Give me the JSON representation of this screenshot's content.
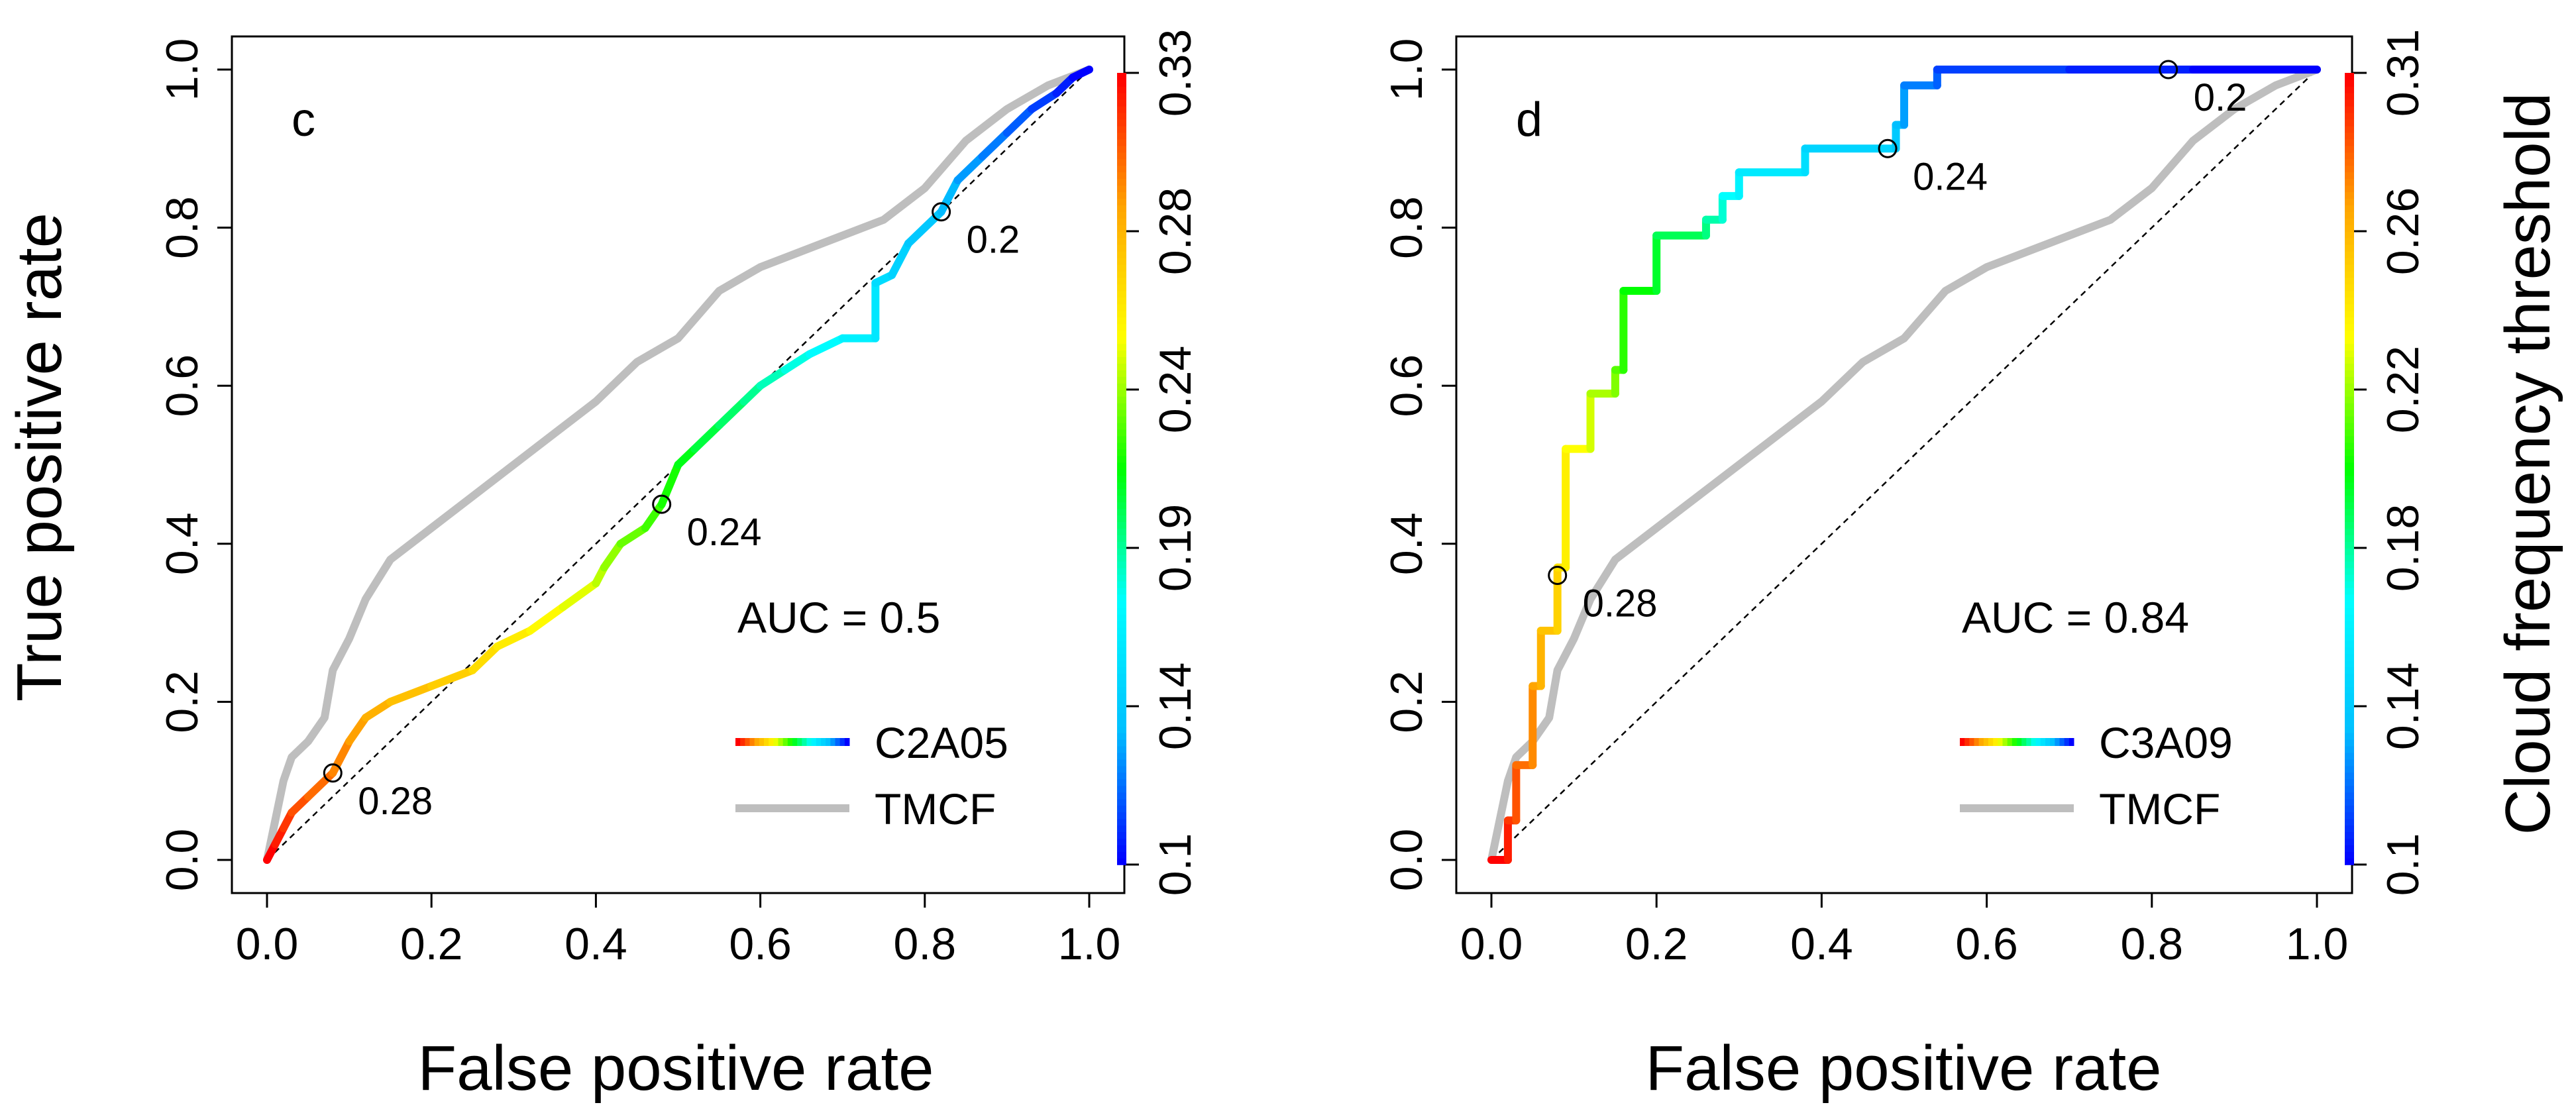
{
  "figure": {
    "xlabel": "False positive rate",
    "ylabel": "True positive rate",
    "colorbar_label": "Cloud frequency threshold"
  },
  "chart_data": [
    {
      "type": "line",
      "panel_letter": "c",
      "xlabel": "False positive rate",
      "ylabel": "True positive rate",
      "xlim": [
        0,
        1
      ],
      "ylim": [
        0,
        1
      ],
      "x_ticks": [
        "0.0",
        "0.2",
        "0.4",
        "0.6",
        "0.8",
        "1.0"
      ],
      "y_ticks": [
        "0.0",
        "0.2",
        "0.4",
        "0.6",
        "0.8",
        "1.0"
      ],
      "grid": false,
      "diagonal_reference": true,
      "auc_text": "AUC = 0.5",
      "legend": {
        "placement": "bottom-right",
        "entries": [
          "C2A05",
          "TMCF"
        ]
      },
      "colorbar": {
        "min": 0.1,
        "max": 0.33,
        "ticks": [
          "0.1",
          "0.14",
          "0.19",
          "0.24",
          "0.28",
          "0.33"
        ],
        "palette": [
          "#0000FF",
          "#00BFFF",
          "#00FFFF",
          "#00FF00",
          "#FFFF00",
          "#FFA500",
          "#FF0000"
        ]
      },
      "series": [
        {
          "name": "C2A05",
          "threshold_range": [
            0.33,
            0.1
          ],
          "x": [
            0.0,
            0.01,
            0.02,
            0.03,
            0.05,
            0.08,
            0.1,
            0.12,
            0.15,
            0.2,
            0.25,
            0.28,
            0.32,
            0.36,
            0.4,
            0.41,
            0.43,
            0.46,
            0.48,
            0.5,
            0.52,
            0.55,
            0.58,
            0.6,
            0.63,
            0.66,
            0.7,
            0.74,
            0.74,
            0.76,
            0.78,
            0.82,
            0.84,
            0.87,
            0.9,
            0.93,
            0.96,
            0.98,
            1.0
          ],
          "y": [
            0.0,
            0.02,
            0.04,
            0.06,
            0.08,
            0.11,
            0.15,
            0.18,
            0.2,
            0.22,
            0.24,
            0.27,
            0.29,
            0.32,
            0.35,
            0.37,
            0.4,
            0.42,
            0.45,
            0.5,
            0.52,
            0.55,
            0.58,
            0.6,
            0.62,
            0.64,
            0.66,
            0.66,
            0.73,
            0.74,
            0.78,
            0.82,
            0.86,
            0.89,
            0.92,
            0.95,
            0.97,
            0.99,
            1.0
          ]
        },
        {
          "name": "TMCF",
          "color": "#BEBEBE",
          "x": [
            0.0,
            0.01,
            0.02,
            0.03,
            0.05,
            0.07,
            0.08,
            0.1,
            0.12,
            0.15,
            0.2,
            0.25,
            0.3,
            0.35,
            0.4,
            0.45,
            0.5,
            0.55,
            0.6,
            0.65,
            0.7,
            0.75,
            0.8,
            0.85,
            0.9,
            0.95,
            1.0
          ],
          "y": [
            0.0,
            0.05,
            0.1,
            0.13,
            0.15,
            0.18,
            0.24,
            0.28,
            0.33,
            0.38,
            0.42,
            0.46,
            0.5,
            0.54,
            0.58,
            0.63,
            0.66,
            0.72,
            0.75,
            0.77,
            0.79,
            0.81,
            0.85,
            0.91,
            0.95,
            0.98,
            1.0
          ]
        }
      ],
      "point_labels": [
        {
          "label": "0.28",
          "x": 0.08,
          "y": 0.11
        },
        {
          "label": "0.24",
          "x": 0.48,
          "y": 0.45
        },
        {
          "label": "0.2",
          "x": 0.82,
          "y": 0.82
        }
      ]
    },
    {
      "type": "line",
      "panel_letter": "d",
      "xlabel": "False positive rate",
      "ylabel": "",
      "xlim": [
        0,
        1
      ],
      "ylim": [
        0,
        1
      ],
      "x_ticks": [
        "0.0",
        "0.2",
        "0.4",
        "0.6",
        "0.8",
        "1.0"
      ],
      "y_ticks": [
        "0.0",
        "0.2",
        "0.4",
        "0.6",
        "0.8",
        "1.0"
      ],
      "grid": false,
      "diagonal_reference": true,
      "auc_text": "AUC = 0.84",
      "legend": {
        "placement": "bottom-right",
        "entries": [
          "C3A09",
          "TMCF"
        ]
      },
      "colorbar": {
        "min": 0.1,
        "max": 0.31,
        "ticks": [
          "0.1",
          "0.14",
          "0.18",
          "0.22",
          "0.26",
          "0.31"
        ],
        "palette": [
          "#0000FF",
          "#00BFFF",
          "#00FFFF",
          "#00FF00",
          "#FFFF00",
          "#FFA500",
          "#FF0000"
        ]
      },
      "series": [
        {
          "name": "C3A09",
          "threshold_range": [
            0.31,
            0.1
          ],
          "x": [
            0.0,
            0.02,
            0.02,
            0.03,
            0.03,
            0.05,
            0.05,
            0.06,
            0.06,
            0.08,
            0.08,
            0.09,
            0.09,
            0.12,
            0.12,
            0.15,
            0.15,
            0.16,
            0.16,
            0.2,
            0.2,
            0.26,
            0.26,
            0.28,
            0.28,
            0.3,
            0.3,
            0.38,
            0.38,
            0.49,
            0.49,
            0.5,
            0.5,
            0.54,
            0.54,
            0.7,
            0.85,
            1.0
          ],
          "y": [
            0.0,
            0.0,
            0.05,
            0.05,
            0.12,
            0.12,
            0.22,
            0.22,
            0.29,
            0.29,
            0.37,
            0.37,
            0.52,
            0.52,
            0.59,
            0.59,
            0.62,
            0.62,
            0.72,
            0.72,
            0.79,
            0.79,
            0.81,
            0.81,
            0.84,
            0.84,
            0.87,
            0.87,
            0.9,
            0.9,
            0.93,
            0.93,
            0.98,
            0.98,
            1.0,
            1.0,
            1.0,
            1.0
          ]
        },
        {
          "name": "TMCF",
          "color": "#BEBEBE",
          "x": [
            0.0,
            0.01,
            0.02,
            0.03,
            0.05,
            0.07,
            0.08,
            0.1,
            0.12,
            0.15,
            0.2,
            0.25,
            0.3,
            0.35,
            0.4,
            0.45,
            0.5,
            0.55,
            0.6,
            0.65,
            0.7,
            0.75,
            0.8,
            0.85,
            0.9,
            0.95,
            1.0
          ],
          "y": [
            0.0,
            0.05,
            0.1,
            0.13,
            0.15,
            0.18,
            0.24,
            0.28,
            0.33,
            0.38,
            0.42,
            0.46,
            0.5,
            0.54,
            0.58,
            0.63,
            0.66,
            0.72,
            0.75,
            0.77,
            0.79,
            0.81,
            0.85,
            0.91,
            0.95,
            0.98,
            1.0
          ]
        }
      ],
      "point_labels": [
        {
          "label": "0.28",
          "x": 0.08,
          "y": 0.36
        },
        {
          "label": "0.24",
          "x": 0.48,
          "y": 0.9
        },
        {
          "label": "0.2",
          "x": 0.82,
          "y": 1.0
        }
      ]
    }
  ]
}
